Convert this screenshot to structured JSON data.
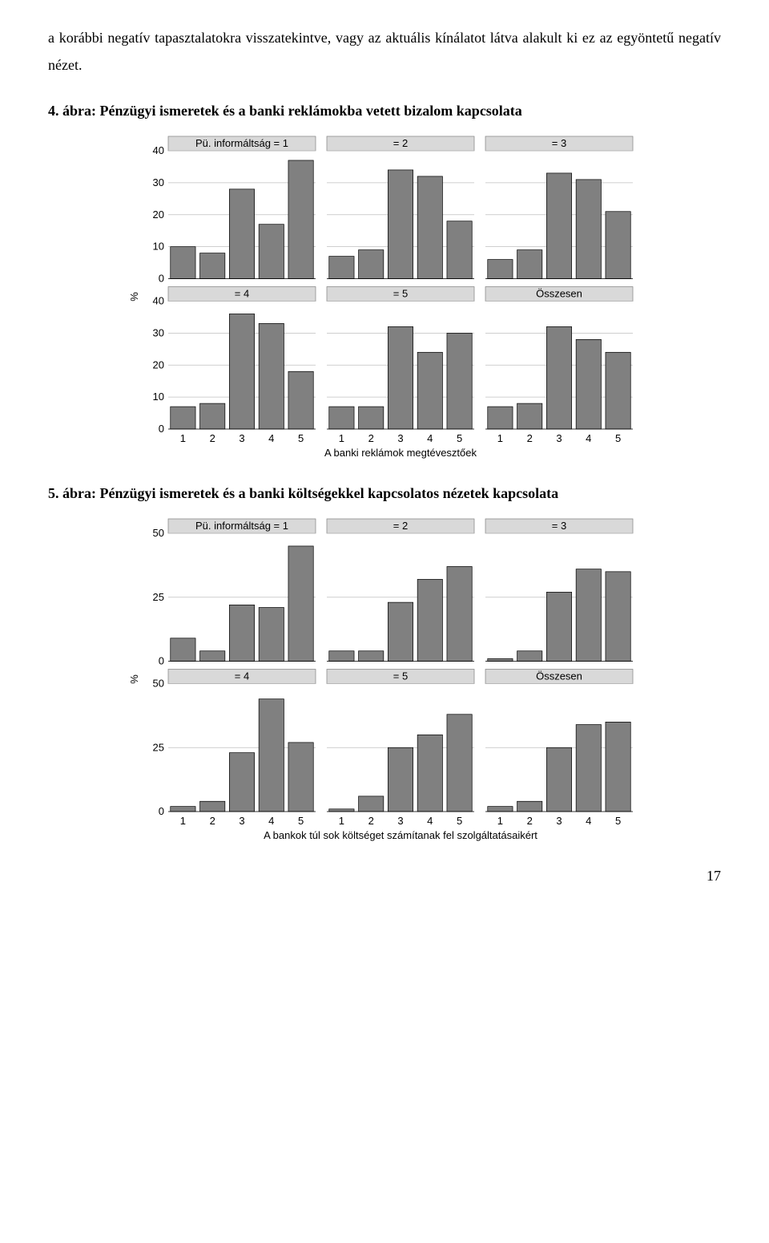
{
  "body_text": "a korábbi negatív tapasztalatokra visszatekintve, vagy az aktuális kínálatot látva alakult ki ez az egyöntetű negatív nézet.",
  "fig4_title": "4. ábra: Pénzügyi ismeretek és a banki reklámokba vetett bizalom kapcsolata",
  "fig5_title": "5. ábra: Pénzügyi ismeretek és a banki költségekkel kapcsolatos nézetek kapcsolata",
  "page_number": "17",
  "colors": {
    "bar_fill": "#808080",
    "bar_stroke": "#000000",
    "panel_header_fill": "#d9d9d9",
    "panel_header_stroke": "#808080",
    "grid": "#bfbfbf",
    "axis": "#000000",
    "background": "#ffffff"
  },
  "fig4": {
    "ylabel": "%",
    "xlabel": "A banki reklámok megtévesztőek",
    "categories": [
      "1",
      "2",
      "3",
      "4",
      "5"
    ],
    "ymax": 40,
    "yticks": [
      0,
      10,
      20,
      30,
      40
    ],
    "label_fontsize": 13,
    "tick_fontsize": 13,
    "bar_width": 0.85,
    "panels": [
      {
        "title": "Pü. informáltság = 1",
        "values": [
          10,
          8,
          28,
          17,
          37
        ]
      },
      {
        "title": "= 2",
        "values": [
          7,
          9,
          34,
          32,
          18
        ]
      },
      {
        "title": "= 3",
        "values": [
          6,
          9,
          33,
          31,
          21
        ]
      },
      {
        "title": "= 4",
        "values": [
          7,
          8,
          36,
          33,
          18
        ]
      },
      {
        "title": "= 5",
        "values": [
          7,
          7,
          32,
          24,
          30
        ]
      },
      {
        "title": "Összesen",
        "values": [
          7,
          8,
          32,
          28,
          24
        ]
      }
    ]
  },
  "fig5": {
    "ylabel": "%",
    "xlabel": "A bankok túl sok költséget számítanak fel szolgáltatásaikért",
    "categories": [
      "1",
      "2",
      "3",
      "4",
      "5"
    ],
    "ymax": 50,
    "yticks": [
      0,
      25,
      50
    ],
    "label_fontsize": 13,
    "tick_fontsize": 13,
    "bar_width": 0.85,
    "panels": [
      {
        "title": "Pü. informáltság = 1",
        "values": [
          9,
          4,
          22,
          21,
          45
        ]
      },
      {
        "title": "= 2",
        "values": [
          4,
          4,
          23,
          32,
          37
        ]
      },
      {
        "title": "= 3",
        "values": [
          1,
          4,
          27,
          36,
          35
        ]
      },
      {
        "title": "= 4",
        "values": [
          2,
          4,
          23,
          44,
          27
        ]
      },
      {
        "title": "= 5",
        "values": [
          1,
          6,
          25,
          30,
          38
        ]
      },
      {
        "title": "Összesen",
        "values": [
          2,
          4,
          25,
          34,
          35
        ]
      }
    ]
  }
}
